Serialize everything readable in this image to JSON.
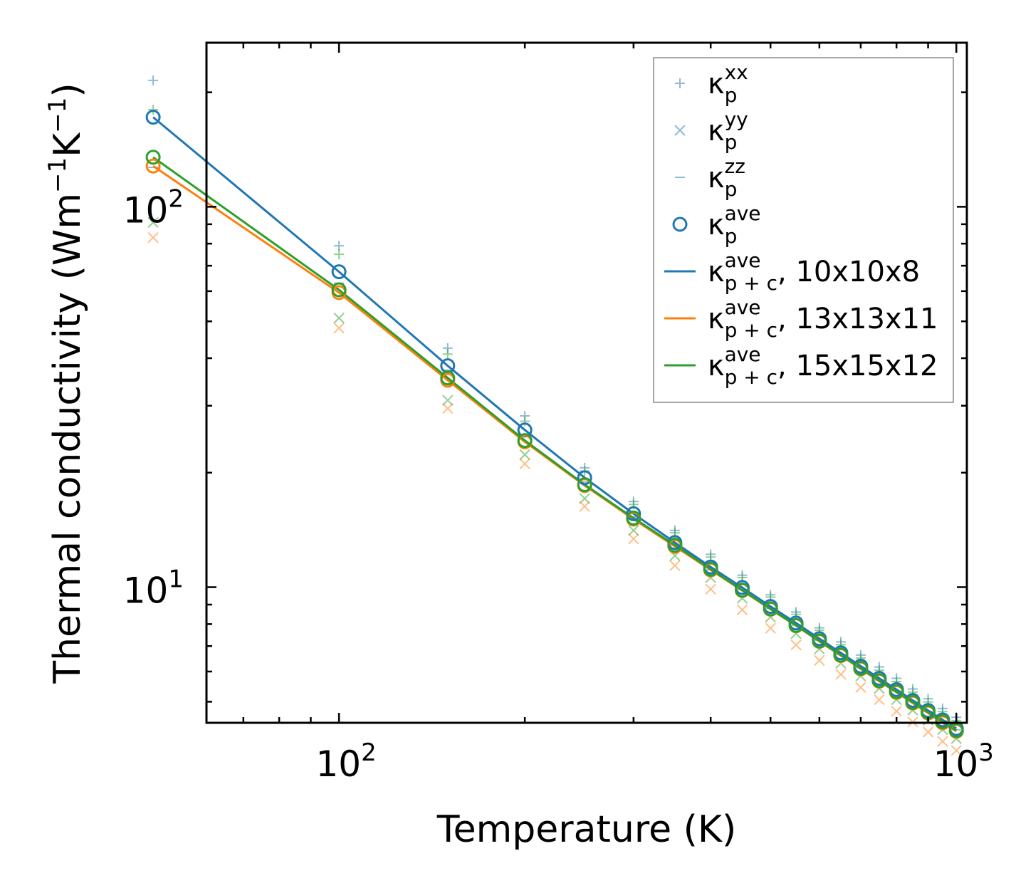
{
  "chart_data": {
    "type": "line",
    "scale": {
      "x": "log",
      "y": "log"
    },
    "xlabel": "Temperature (K)",
    "ylabel": "Thermal conductivity (Wm",
    "ylabel_unit": {
      "base1": "Wm",
      "exp1": "−1",
      "base2": "K",
      "exp2": "−1",
      "close": ")"
    },
    "xlim": [
      61,
      1040
    ],
    "ylim": [
      4.4,
      270
    ],
    "xticks": [
      {
        "value": 100,
        "base": "10",
        "exp": "2"
      },
      {
        "value": 1000,
        "base": "10",
        "exp": "3"
      }
    ],
    "yticks": [
      {
        "value": 10,
        "base": "10",
        "exp": "1"
      },
      {
        "value": 100,
        "base": "10",
        "exp": "2"
      }
    ],
    "x": [
      50,
      100,
      150,
      200,
      250,
      300,
      350,
      400,
      450,
      500,
      550,
      600,
      650,
      700,
      750,
      800,
      850,
      900,
      950,
      1000
    ],
    "series": [
      {
        "name": "κp^xx 10x10x8",
        "kind": "plus",
        "color": "#1f77b4",
        "values": [
          215,
          79,
          42.5,
          28.2,
          20.6,
          16.8,
          14.1,
          12.2,
          10.75,
          9.55,
          8.6,
          7.82,
          7.18,
          6.63,
          6.17,
          5.76,
          5.4,
          5.09,
          4.8,
          4.55
        ]
      },
      {
        "name": "κp^xx 15x15x12",
        "kind": "plus",
        "color": "#2ca02c",
        "values": [
          180,
          75,
          41,
          27.3,
          20.2,
          16.5,
          13.9,
          12,
          10.6,
          9.42,
          8.48,
          7.7,
          7.06,
          6.51,
          6.05,
          5.65,
          5.3,
          4.99,
          4.71,
          4.46
        ]
      },
      {
        "name": "κp^yy 15x15x12",
        "kind": "cross",
        "color": "#2ca02c",
        "values": [
          91,
          51,
          31,
          22.3,
          17.1,
          14.1,
          12.1,
          10.6,
          9.35,
          8.35,
          7.55,
          6.88,
          6.31,
          5.84,
          5.42,
          5.06,
          4.75,
          4.47,
          4.22,
          4.0
        ]
      },
      {
        "name": "κp^yy 13x13x11",
        "kind": "cross",
        "color": "#ff7f0e",
        "values": [
          83,
          48,
          29.5,
          21.1,
          16.3,
          13.4,
          11.4,
          9.88,
          8.72,
          7.8,
          7.05,
          6.42,
          5.9,
          5.45,
          5.06,
          4.72,
          4.42,
          4.16,
          3.93,
          3.72
        ]
      },
      {
        "name": "κp^zz",
        "kind": "dash",
        "color": "#1f77b4",
        "values": [
          127,
          63,
          37.2,
          25.2,
          18.9,
          15.3,
          12.9,
          11.1,
          9.85,
          8.8,
          7.95,
          7.25,
          6.65,
          6.14,
          5.7,
          5.33,
          5.0,
          4.71,
          4.45,
          4.22
        ]
      },
      {
        "name": "κp^ave 10x10x8",
        "kind": "circle",
        "color": "#1f77b4",
        "values": [
          172,
          67.5,
          38.2,
          25.9,
          19.4,
          15.6,
          13.1,
          11.3,
          9.98,
          8.9,
          8.05,
          7.32,
          6.72,
          6.2,
          5.76,
          5.38,
          5.04,
          4.74,
          4.48,
          4.25
        ]
      },
      {
        "name": "κp^ave 13x13x11",
        "kind": "circle",
        "color": "#ff7f0e",
        "values": [
          128,
          59.5,
          35,
          24.1,
          18.5,
          15.1,
          12.8,
          11.1,
          9.8,
          8.75,
          7.92,
          7.2,
          6.61,
          6.1,
          5.66,
          5.29,
          4.96,
          4.67,
          4.4,
          4.18
        ]
      },
      {
        "name": "κp^ave 15x15x12",
        "kind": "circle",
        "color": "#2ca02c",
        "values": [
          135,
          60.5,
          35.5,
          24.3,
          18.6,
          15.2,
          12.9,
          11.15,
          9.82,
          8.77,
          7.93,
          7.22,
          6.63,
          6.12,
          5.68,
          5.31,
          4.98,
          4.69,
          4.43,
          4.2
        ]
      },
      {
        "name": "κp+c^ave, 10x10x8",
        "kind": "line",
        "color": "#1f77b4",
        "values": [
          172,
          67.5,
          38.2,
          25.9,
          19.4,
          15.6,
          13.1,
          11.3,
          9.98,
          8.9,
          8.05,
          7.32,
          6.72,
          6.2,
          5.76,
          5.38,
          5.04,
          4.74,
          4.48,
          4.25
        ]
      },
      {
        "name": "κp+c^ave, 13x13x11",
        "kind": "line",
        "color": "#ff7f0e",
        "values": [
          128,
          59.5,
          35,
          24.1,
          18.5,
          15.1,
          12.8,
          11.1,
          9.8,
          8.75,
          7.92,
          7.2,
          6.61,
          6.1,
          5.66,
          5.29,
          4.96,
          4.67,
          4.4,
          4.18
        ]
      },
      {
        "name": "κp+c^ave, 15x15x12",
        "kind": "line",
        "color": "#2ca02c",
        "values": [
          135,
          60.5,
          35.5,
          24.3,
          18.6,
          15.2,
          12.9,
          11.15,
          9.82,
          8.77,
          7.93,
          7.22,
          6.63,
          6.12,
          5.68,
          5.31,
          4.98,
          4.69,
          4.43,
          4.2
        ]
      }
    ],
    "legend": {
      "placement": "top-right",
      "entries": [
        {
          "kind": "plus",
          "color": "#1f77b4",
          "base": "κ",
          "sub": "p",
          "sup": "xx",
          "suffix": ""
        },
        {
          "kind": "cross",
          "color": "#1f77b4",
          "base": "κ",
          "sub": "p",
          "sup": "yy",
          "suffix": ""
        },
        {
          "kind": "dash",
          "color": "#1f77b4",
          "base": "κ",
          "sub": "p",
          "sup": "zz",
          "suffix": ""
        },
        {
          "kind": "circle",
          "color": "#1f77b4",
          "base": "κ",
          "sub": "p",
          "sup": "ave",
          "suffix": ""
        },
        {
          "kind": "line",
          "color": "#1f77b4",
          "base": "κ",
          "sub": "p + c",
          "sup": "ave",
          "suffix": ", 10x10x8"
        },
        {
          "kind": "line",
          "color": "#ff7f0e",
          "base": "κ",
          "sub": "p + c",
          "sup": "ave",
          "suffix": ", 13x13x11"
        },
        {
          "kind": "line",
          "color": "#2ca02c",
          "base": "κ",
          "sub": "p + c",
          "sup": "ave",
          "suffix": ", 15x15x12"
        }
      ]
    }
  }
}
